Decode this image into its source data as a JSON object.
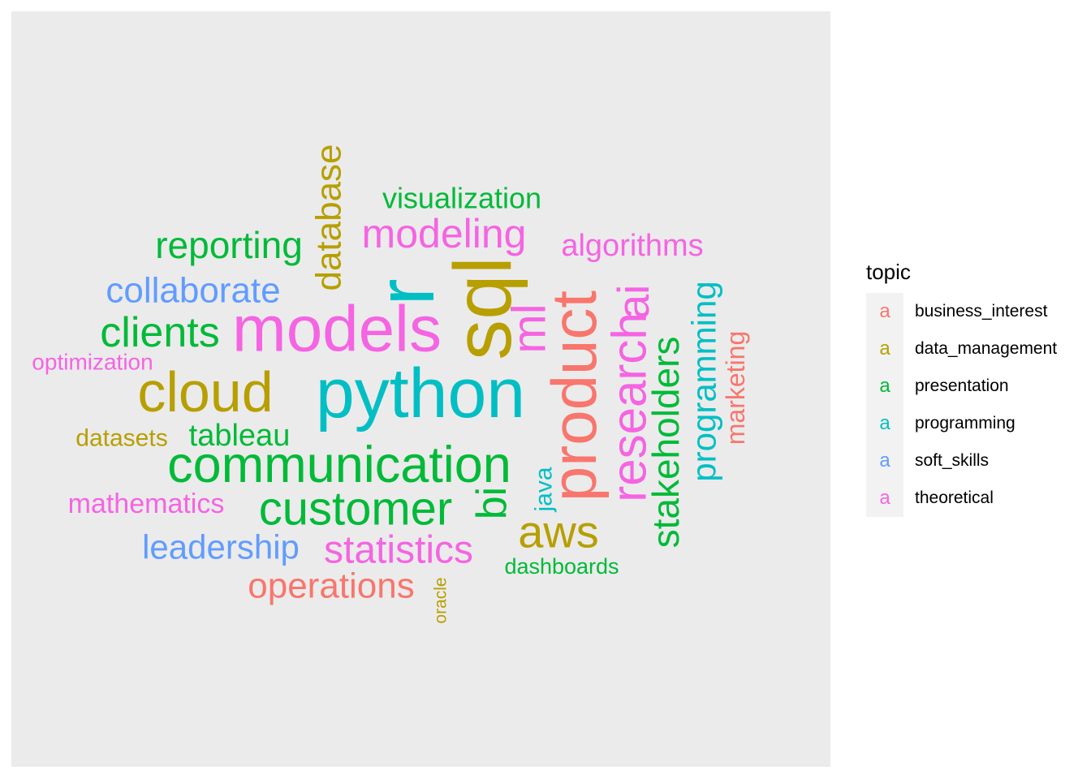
{
  "chart_data": {
    "type": "wordcloud",
    "legend": {
      "title": "topic",
      "placement": "right",
      "entries": [
        {
          "label": "business_interest",
          "key": "a",
          "color": "#F8766D"
        },
        {
          "label": "data_management",
          "key": "a",
          "color": "#B79F00"
        },
        {
          "label": "presentation",
          "key": "a",
          "color": "#00BA38"
        },
        {
          "label": "programming",
          "key": "a",
          "color": "#00BFC4"
        },
        {
          "label": "soft_skills",
          "key": "a",
          "color": "#619CFF"
        },
        {
          "label": "theoretical",
          "key": "a",
          "color": "#F564E3"
        }
      ]
    },
    "words": [
      {
        "word": "python",
        "topic": "programming",
        "size": 86,
        "vertical": false
      },
      {
        "word": "sql",
        "topic": "data_management",
        "size": 100,
        "vertical": true
      },
      {
        "word": "r",
        "topic": "programming",
        "size": 100,
        "vertical": true
      },
      {
        "word": "models",
        "topic": "theoretical",
        "size": 80,
        "vertical": false
      },
      {
        "word": "product",
        "topic": "business_interest",
        "size": 78,
        "vertical": true
      },
      {
        "word": "communication",
        "topic": "presentation",
        "size": 63,
        "vertical": false
      },
      {
        "word": "cloud",
        "topic": "data_management",
        "size": 70,
        "vertical": false
      },
      {
        "word": "customer",
        "topic": "presentation",
        "size": 58,
        "vertical": false
      },
      {
        "word": "research",
        "topic": "theoretical",
        "size": 60,
        "vertical": true
      },
      {
        "word": "ml",
        "topic": "theoretical",
        "size": 58,
        "vertical": true
      },
      {
        "word": "ai",
        "topic": "theoretical",
        "size": 55,
        "vertical": true
      },
      {
        "word": "stakeholders",
        "topic": "presentation",
        "size": 46,
        "vertical": true
      },
      {
        "word": "clients",
        "topic": "presentation",
        "size": 52,
        "vertical": false
      },
      {
        "word": "aws",
        "topic": "data_management",
        "size": 56,
        "vertical": false
      },
      {
        "word": "bi",
        "topic": "presentation",
        "size": 52,
        "vertical": true
      },
      {
        "word": "statistics",
        "topic": "theoretical",
        "size": 48,
        "vertical": false
      },
      {
        "word": "modeling",
        "topic": "theoretical",
        "size": 50,
        "vertical": false
      },
      {
        "word": "reporting",
        "topic": "presentation",
        "size": 46,
        "vertical": false
      },
      {
        "word": "collaborate",
        "topic": "soft_skills",
        "size": 44,
        "vertical": false
      },
      {
        "word": "database",
        "topic": "data_management",
        "size": 44,
        "vertical": true
      },
      {
        "word": "programming",
        "topic": "programming",
        "size": 42,
        "vertical": true
      },
      {
        "word": "operations",
        "topic": "business_interest",
        "size": 44,
        "vertical": false
      },
      {
        "word": "leadership",
        "topic": "soft_skills",
        "size": 42,
        "vertical": false
      },
      {
        "word": "tableau",
        "topic": "presentation",
        "size": 38,
        "vertical": false
      },
      {
        "word": "algorithms",
        "topic": "theoretical",
        "size": 38,
        "vertical": false
      },
      {
        "word": "visualization",
        "topic": "presentation",
        "size": 36,
        "vertical": false
      },
      {
        "word": "mathematics",
        "topic": "theoretical",
        "size": 34,
        "vertical": false
      },
      {
        "word": "marketing",
        "topic": "business_interest",
        "size": 32,
        "vertical": true
      },
      {
        "word": "datasets",
        "topic": "data_management",
        "size": 30,
        "vertical": false
      },
      {
        "word": "java",
        "topic": "programming",
        "size": 30,
        "vertical": true
      },
      {
        "word": "optimization",
        "topic": "theoretical",
        "size": 28,
        "vertical": false
      },
      {
        "word": "dashboards",
        "topic": "presentation",
        "size": 27,
        "vertical": false
      },
      {
        "word": "oracle",
        "topic": "data_management",
        "size": 21,
        "vertical": true
      }
    ]
  }
}
